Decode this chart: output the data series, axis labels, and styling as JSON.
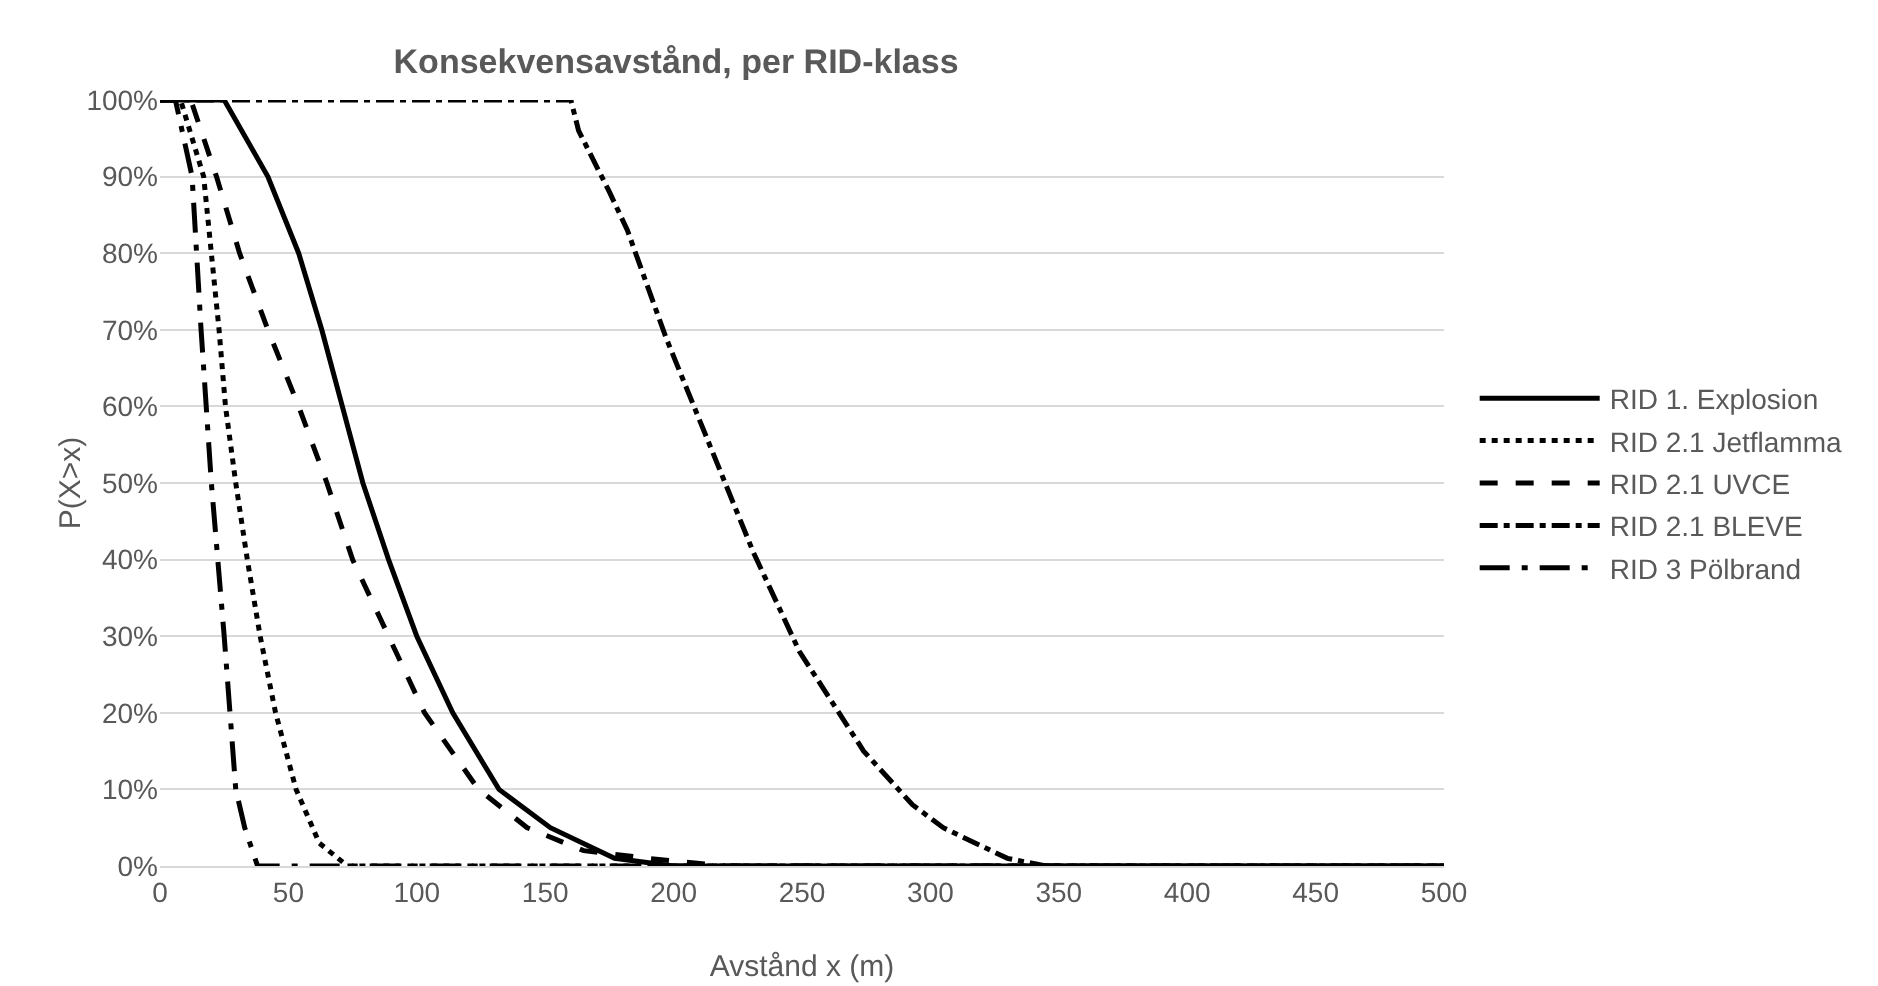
{
  "chart_data": {
    "type": "line",
    "title": "Konsekvensavstånd, per RID-klass",
    "xlabel": "Avstånd x (m)",
    "ylabel": "P(X>x)",
    "xlim": [
      0,
      500
    ],
    "xticks": [
      0,
      50,
      100,
      150,
      200,
      250,
      300,
      350,
      400,
      450,
      500
    ],
    "ylim": [
      0,
      100
    ],
    "yticks": [
      {
        "value": 0,
        "label": "0%"
      },
      {
        "value": 10,
        "label": "10%"
      },
      {
        "value": 20,
        "label": "20%"
      },
      {
        "value": 30,
        "label": "30%"
      },
      {
        "value": 40,
        "label": "40%"
      },
      {
        "value": 50,
        "label": "50%"
      },
      {
        "value": 60,
        "label": "60%"
      },
      {
        "value": 70,
        "label": "70%"
      },
      {
        "value": 80,
        "label": "80%"
      },
      {
        "value": 90,
        "label": "90%"
      },
      {
        "value": 100,
        "label": "100%"
      }
    ],
    "grid": "y",
    "legend": "right",
    "marker": "none",
    "series": [
      {
        "name": "RID 1. Explosion",
        "color": "#000000",
        "line_style": "solid",
        "x": [
          0,
          25,
          42,
          54,
          63,
          71,
          79,
          89,
          100,
          114,
          132,
          152,
          177,
          200,
          250,
          500
        ],
        "values": [
          100,
          100,
          90,
          80,
          70,
          60,
          50,
          40,
          30,
          20,
          10,
          5,
          1,
          0,
          0,
          0
        ]
      },
      {
        "name": "RID 2.1 Jetflamma",
        "color": "#000000",
        "line_style": "dotted",
        "x": [
          0,
          8,
          17,
          20,
          23,
          25.5,
          29.5,
          34,
          39,
          45,
          53,
          62,
          73,
          500
        ],
        "values": [
          100,
          100,
          90,
          80,
          70,
          60,
          50,
          40,
          30,
          20,
          10,
          3,
          0,
          0
        ]
      },
      {
        "name": "RID 2.1 UVCE",
        "color": "#000000",
        "line_style": "dashed",
        "x": [
          0,
          12,
          22,
          31,
          42,
          54,
          65,
          75,
          89,
          103,
          124,
          143,
          165,
          190,
          220,
          500
        ],
        "values": [
          100,
          100,
          90,
          80,
          70,
          60,
          50,
          40,
          30,
          20,
          10,
          5,
          2,
          1,
          0,
          0
        ]
      },
      {
        "name": "RID 2.1 BLEVE",
        "color": "#000000",
        "line_style": "dashdot",
        "x": [
          0,
          160,
          163,
          175,
          182,
          197,
          214,
          231,
          249,
          274,
          293,
          305,
          330,
          345,
          500
        ],
        "values": [
          100,
          100,
          96,
          88,
          83,
          69,
          55,
          41,
          28,
          15,
          8,
          5,
          1,
          0,
          0
        ]
      },
      {
        "name": "RID 3 Pölbrand",
        "color": "#000000",
        "line_style": "longdashdot",
        "x": [
          0,
          6,
          12.5,
          16,
          20,
          25,
          29.5,
          33,
          38,
          500
        ],
        "values": [
          100,
          100,
          90,
          70,
          50,
          30,
          10,
          5,
          0,
          0
        ]
      }
    ]
  }
}
